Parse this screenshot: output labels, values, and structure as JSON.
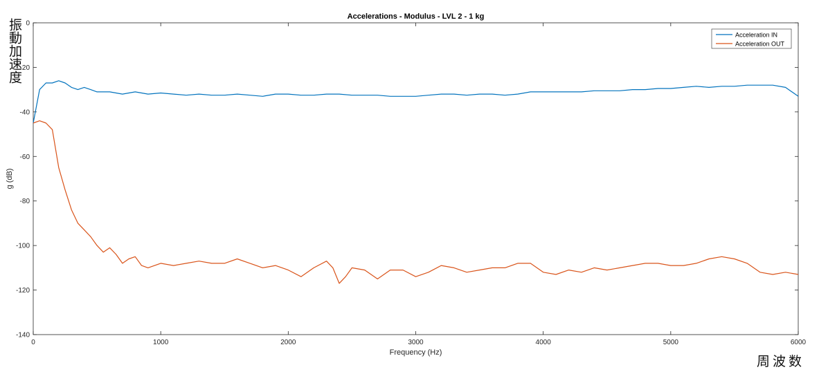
{
  "annotations": {
    "ylabel_jp": "振動加速度",
    "xlabel_jp": "周波数"
  },
  "chart_data": {
    "type": "line",
    "title": "Accelerations - Modulus - LVL 2 - 1 kg",
    "xlabel": "Frequency (Hz)",
    "ylabel": "g (dB)",
    "xlim": [
      0,
      6000
    ],
    "ylim": [
      -140,
      0
    ],
    "xticks": [
      0,
      1000,
      2000,
      3000,
      4000,
      5000,
      6000
    ],
    "yticks": [
      0,
      -20,
      -40,
      -60,
      -80,
      -100,
      -120,
      -140
    ],
    "grid": false,
    "legend_position": "top-right",
    "series": [
      {
        "name": "Acceleration IN",
        "color": "#0072BD",
        "x": [
          0,
          50,
          100,
          150,
          200,
          250,
          300,
          350,
          400,
          450,
          500,
          600,
          700,
          800,
          900,
          1000,
          1100,
          1200,
          1300,
          1400,
          1500,
          1600,
          1700,
          1800,
          1900,
          2000,
          2100,
          2200,
          2300,
          2400,
          2500,
          2600,
          2700,
          2800,
          2900,
          3000,
          3100,
          3200,
          3300,
          3400,
          3500,
          3600,
          3700,
          3800,
          3900,
          4000,
          4100,
          4200,
          4300,
          4400,
          4500,
          4600,
          4700,
          4800,
          4900,
          5000,
          5100,
          5200,
          5300,
          5400,
          5500,
          5600,
          5700,
          5800,
          5900,
          6000
        ],
        "y": [
          -45,
          -30,
          -27,
          -27,
          -26,
          -27,
          -29,
          -30,
          -29,
          -30,
          -31,
          -31,
          -32,
          -31,
          -32,
          -31.5,
          -32,
          -32.5,
          -32,
          -32.5,
          -32.5,
          -32,
          -32.5,
          -33,
          -32,
          -32,
          -32.5,
          -32.5,
          -32,
          -32,
          -32.5,
          -32.5,
          -32.5,
          -33,
          -33,
          -33,
          -32.5,
          -32,
          -32,
          -32.5,
          -32,
          -32,
          -32.5,
          -32,
          -31,
          -31,
          -31,
          -31,
          -31,
          -30.5,
          -30.5,
          -30.5,
          -30,
          -30,
          -29.5,
          -29.5,
          -29,
          -28.5,
          -29,
          -28.5,
          -28.5,
          -28,
          -28,
          -28,
          -29,
          -33
        ]
      },
      {
        "name": "Acceleration OUT",
        "color": "#D95319",
        "x": [
          0,
          50,
          100,
          150,
          200,
          250,
          300,
          350,
          400,
          450,
          500,
          550,
          600,
          650,
          700,
          750,
          800,
          850,
          900,
          1000,
          1100,
          1200,
          1300,
          1400,
          1500,
          1600,
          1700,
          1800,
          1900,
          2000,
          2100,
          2200,
          2300,
          2350,
          2400,
          2450,
          2500,
          2600,
          2700,
          2800,
          2900,
          3000,
          3100,
          3200,
          3300,
          3400,
          3500,
          3600,
          3700,
          3800,
          3900,
          4000,
          4100,
          4200,
          4300,
          4400,
          4500,
          4600,
          4700,
          4800,
          4900,
          5000,
          5100,
          5200,
          5300,
          5400,
          5500,
          5600,
          5700,
          5800,
          5900,
          6000
        ],
        "y": [
          -45,
          -44,
          -45,
          -48,
          -65,
          -75,
          -84,
          -90,
          -93,
          -96,
          -100,
          -103,
          -101,
          -104,
          -108,
          -106,
          -105,
          -109,
          -110,
          -108,
          -109,
          -108,
          -107,
          -108,
          -108,
          -106,
          -108,
          -110,
          -109,
          -111,
          -114,
          -110,
          -107,
          -110,
          -117,
          -114,
          -110,
          -111,
          -115,
          -111,
          -111,
          -114,
          -112,
          -109,
          -110,
          -112,
          -111,
          -110,
          -110,
          -108,
          -108,
          -112,
          -113,
          -111,
          -112,
          -110,
          -111,
          -110,
          -109,
          -108,
          -108,
          -109,
          -109,
          -108,
          -106,
          -105,
          -106,
          -108,
          -112,
          -113,
          -112,
          -113
        ]
      }
    ]
  }
}
